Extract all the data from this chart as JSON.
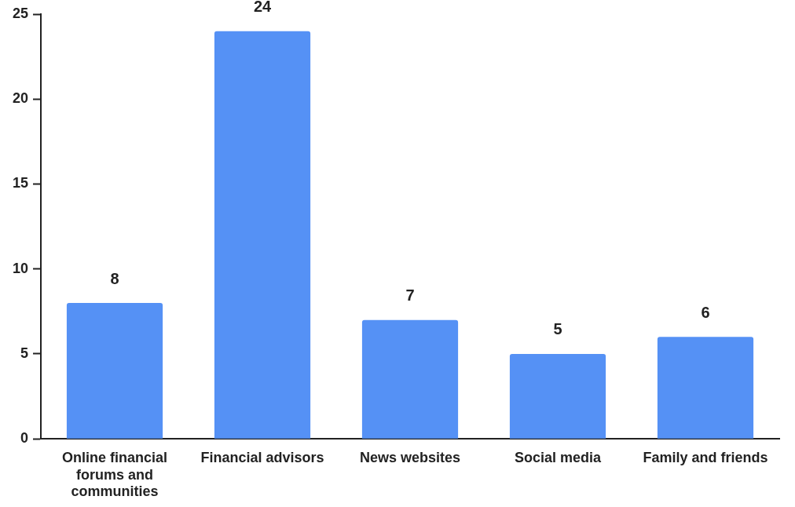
{
  "chart_data": {
    "type": "bar",
    "categories": [
      "Online financial forums and communities",
      "Financial advisors",
      "News websites",
      "Social media",
      "Family and friends"
    ],
    "values": [
      8,
      24,
      7,
      5,
      6
    ],
    "color": "#5591f5",
    "ylim": [
      0,
      25
    ],
    "yticks": [
      0,
      5,
      10,
      15,
      20,
      25
    ],
    "grid": false,
    "legend": false,
    "data_labels": true
  }
}
